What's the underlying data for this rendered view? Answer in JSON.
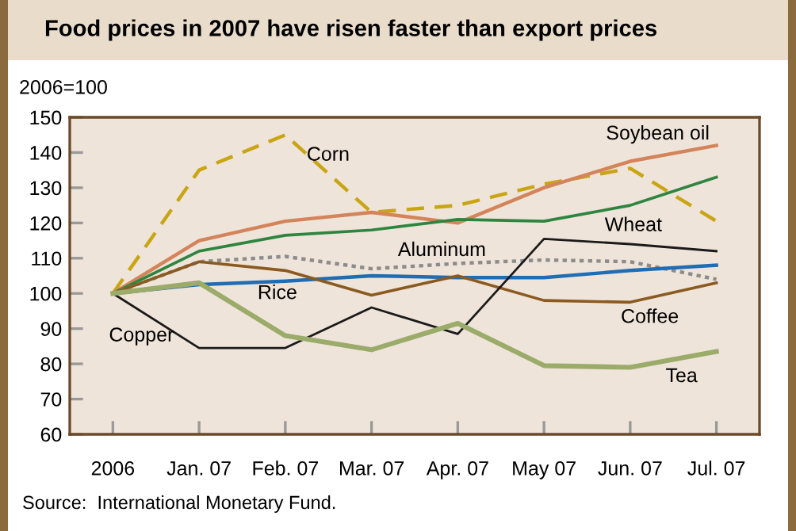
{
  "chart_data": {
    "type": "line",
    "title": "Food prices in 2007 have risen faster than export prices",
    "ylabel": "2006=100",
    "categories": [
      "2006",
      "Jan. 07",
      "Feb. 07",
      "Mar. 07",
      "Apr. 07",
      "May 07",
      "Jun. 07",
      "Jul. 07"
    ],
    "series": [
      {
        "name": "Corn",
        "color": "#c9a516",
        "line_style": "dashed",
        "values": [
          100,
          135,
          145,
          123,
          125,
          131,
          135.5,
          120.5
        ]
      },
      {
        "name": "Soybean oil",
        "color": "#d4845a",
        "values": [
          100,
          115,
          120.5,
          123,
          120,
          130,
          137.5,
          142
        ]
      },
      {
        "name": "Wheat",
        "color": "#2e8540",
        "values": [
          100,
          112,
          116.5,
          118,
          121,
          120.5,
          125,
          133
        ]
      },
      {
        "name": "Aluminum",
        "color": "#8c8c8c",
        "line_style": "dotted",
        "values": [
          100,
          109,
          110.5,
          107,
          108.5,
          109.5,
          109,
          104
        ]
      },
      {
        "name": "Rice",
        "color": "#1f6db5",
        "values": [
          100,
          102.5,
          103.5,
          105,
          104.5,
          104.5,
          106.5,
          108
        ]
      },
      {
        "name": "Coffee",
        "color": "#8a5a20",
        "values": [
          100,
          109,
          106.5,
          99.5,
          105,
          98,
          97.5,
          103
        ]
      },
      {
        "name": "Copper",
        "color": "#1a1a1a",
        "values": [
          100,
          84.5,
          84.5,
          96,
          88.5,
          115.5,
          114,
          112
        ]
      },
      {
        "name": "Tea",
        "color": "#9aab6a",
        "values": [
          100,
          103,
          88,
          84,
          91.5,
          79.5,
          79,
          83.5
        ]
      }
    ],
    "ylim": [
      60,
      150
    ],
    "yticks": [
      60,
      70,
      80,
      90,
      100,
      110,
      120,
      130,
      140,
      150
    ],
    "grid": false,
    "legend": false,
    "marker": "none",
    "annotations": [
      "Source:  International Monetary Fund."
    ]
  }
}
